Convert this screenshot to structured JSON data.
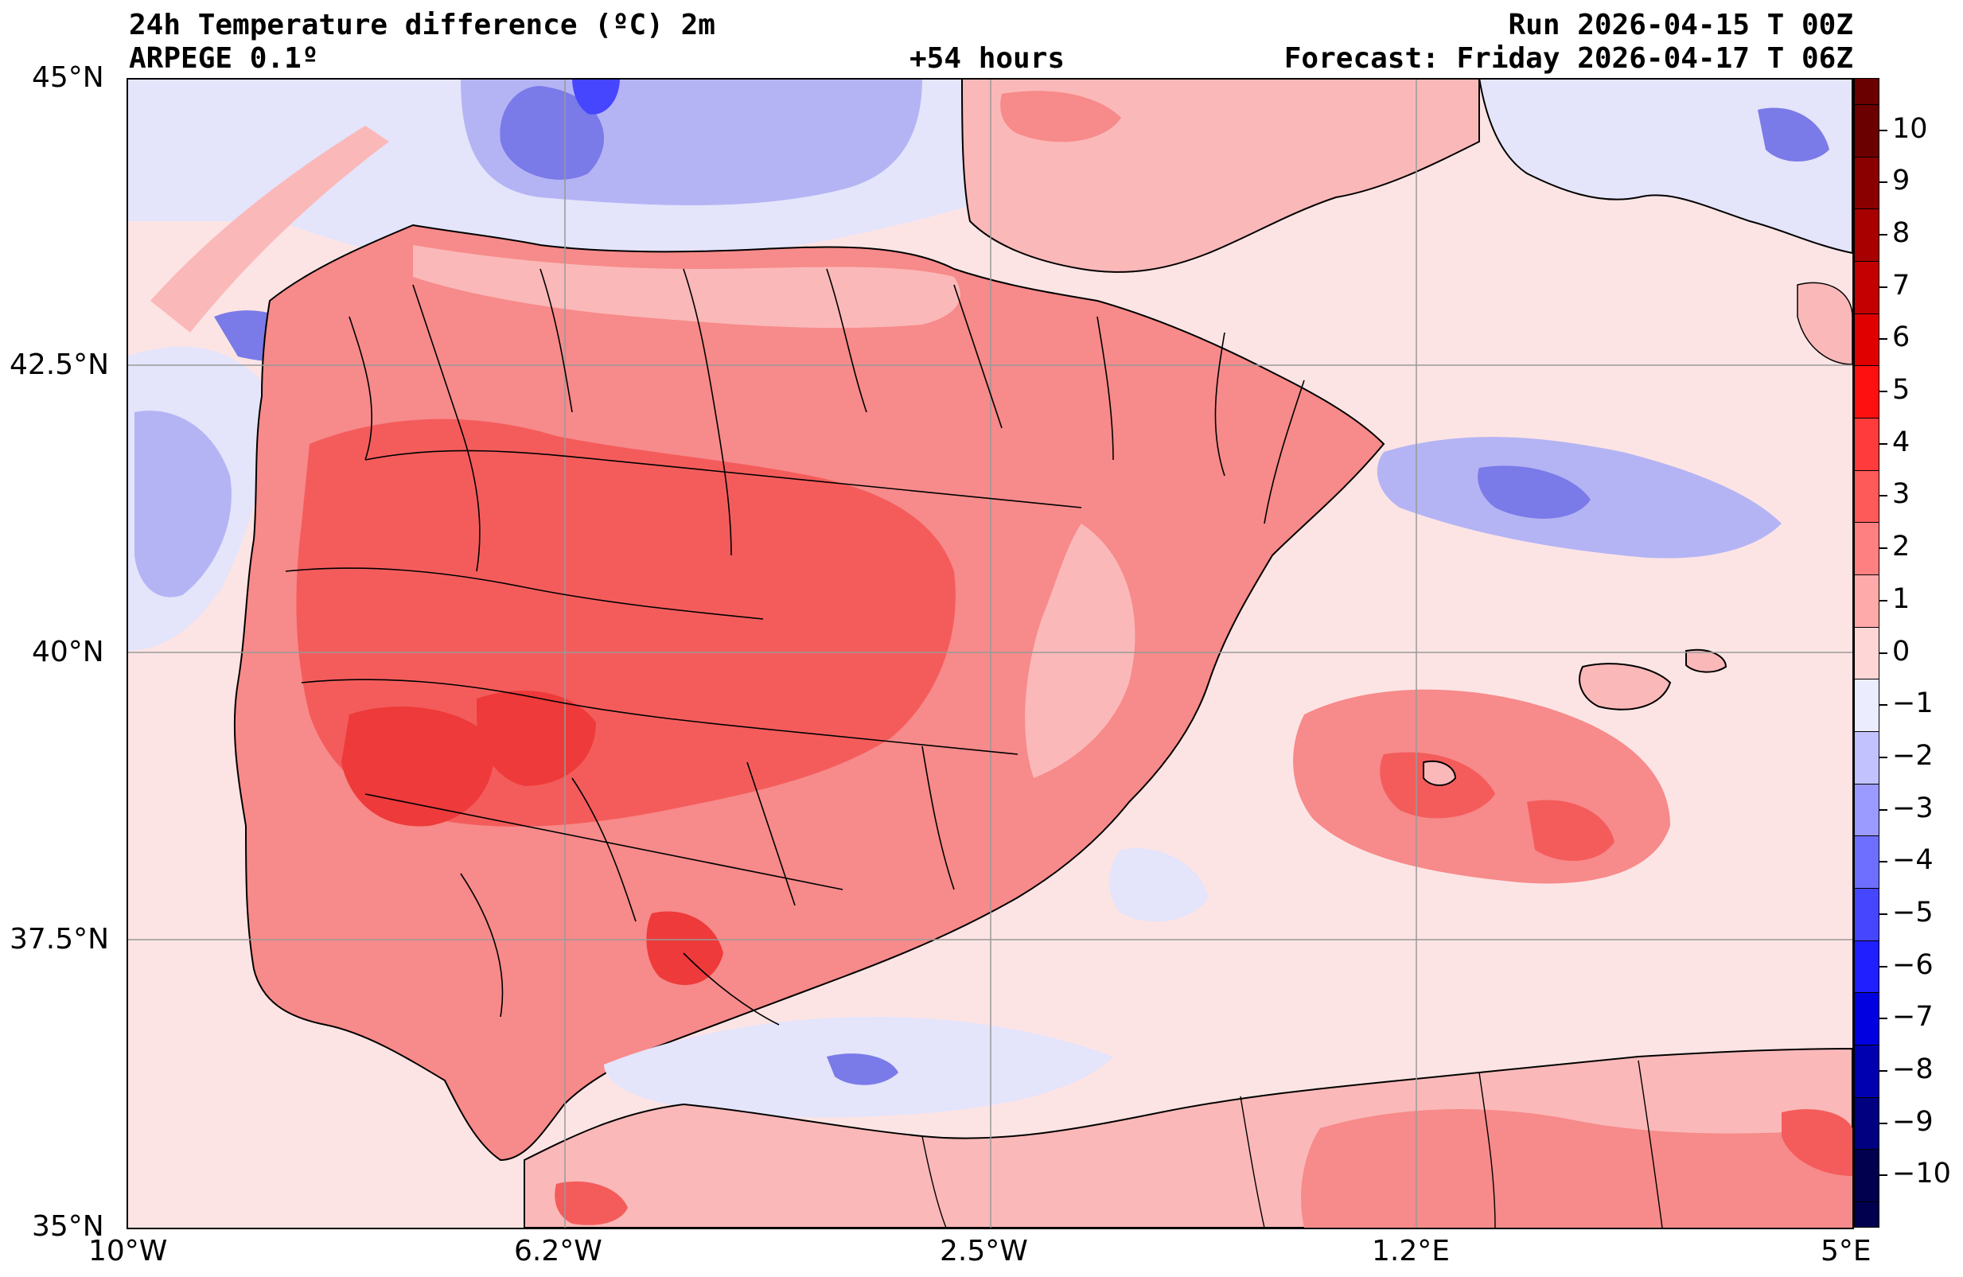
{
  "header": {
    "title": "24h Temperature difference (ºC) 2m",
    "model": "ARPEGE 0.1º",
    "lead_time": "+54 hours",
    "run": "Run 2026-04-15 T 00Z",
    "forecast": "Forecast: Friday 2026-04-17 T 06Z"
  },
  "axes": {
    "lat_labels": [
      "45°N",
      "42.5°N",
      "40°N",
      "37.5°N",
      "35°N"
    ],
    "lon_labels": [
      "10°W",
      "6.2°W",
      "2.5°W",
      "1.2°E",
      "5°E"
    ]
  },
  "colorbar": {
    "labels": [
      "10",
      "9",
      "8",
      "7",
      "6",
      "5",
      "4",
      "3",
      "2",
      "1",
      "0",
      "−1",
      "−2",
      "−3",
      "−4",
      "−5",
      "−6",
      "−7",
      "−8",
      "−9",
      "−10"
    ],
    "colors": [
      "#6b0000",
      "#8a0000",
      "#a80000",
      "#c40000",
      "#e00000",
      "#ff1010",
      "#ff3b3b",
      "#ff5a5a",
      "#ff8080",
      "#ffaaaa",
      "#ffd6d6",
      "#ececff",
      "#c2c2ff",
      "#9a9aff",
      "#6f6fff",
      "#4646ff",
      "#1f1fff",
      "#0000e0",
      "#0000b0",
      "#000080",
      "#00004f"
    ]
  },
  "map_colors": {
    "background": "#fde4e4",
    "light_blue": "#e4e4fb",
    "mid_blue": "#b4b4f5",
    "deep_blue": "#7a7ae8",
    "light_red": "#fbb8b8",
    "mid_red": "#f78a8a",
    "deep_red": "#f45c5c",
    "strong_red": "#ee3a3a",
    "land_outline": "#000000"
  }
}
